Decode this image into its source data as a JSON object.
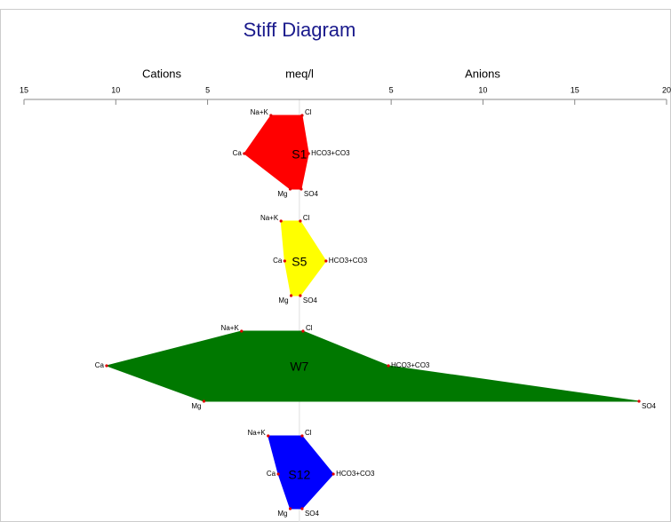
{
  "chart_data": {
    "type": "stiff",
    "title": "Stiff Diagram",
    "left_label": "Cations",
    "center_label": "meq/l",
    "right_label": "Anions",
    "xlim": [
      -15,
      20
    ],
    "xticks": [
      {
        "value": -15,
        "label": "15"
      },
      {
        "value": -10,
        "label": "10"
      },
      {
        "value": -5,
        "label": "5"
      },
      5,
      10,
      15,
      20
    ],
    "cations": [
      "Na+K",
      "Ca",
      "Mg"
    ],
    "anions": [
      "Cl",
      "HCO3+CO3",
      "SO4"
    ],
    "samples": [
      {
        "name": "S1",
        "color": "#ff0000",
        "cations": [
          1.55,
          3.0,
          0.5
        ],
        "anions": [
          0.15,
          0.5,
          0.1
        ]
      },
      {
        "name": "S5",
        "color": "#ffff00",
        "cations": [
          1.0,
          0.8,
          0.45
        ],
        "anions": [
          0.05,
          1.45,
          0.05
        ]
      },
      {
        "name": "W7",
        "color": "#007800",
        "cations": [
          3.15,
          10.5,
          5.2
        ],
        "anions": [
          0.2,
          4.85,
          18.5
        ]
      },
      {
        "name": "S12",
        "color": "#0000ff",
        "cations": [
          1.7,
          1.15,
          0.5
        ],
        "anions": [
          0.15,
          1.85,
          0.15
        ]
      }
    ]
  }
}
